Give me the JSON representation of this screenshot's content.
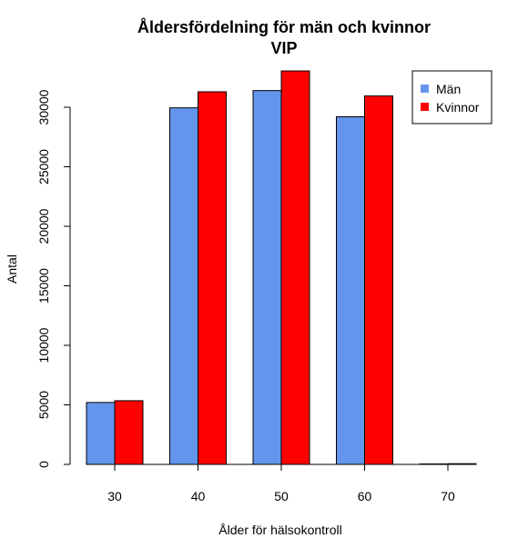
{
  "chart_data": {
    "type": "bar",
    "title": "Åldersfördelning för män och kvinnor",
    "subtitle": "VIP",
    "xlabel": "Ålder för hälsokontroll",
    "ylabel": "Antal",
    "categories": [
      "30",
      "40",
      "50",
      "60",
      "70"
    ],
    "series": [
      {
        "name": "Män",
        "color": "#6495ED",
        "values": [
          5200,
          29950,
          31400,
          29200,
          40
        ]
      },
      {
        "name": "Kvinnor",
        "color": "#FF0000",
        "values": [
          5350,
          31300,
          33050,
          30950,
          60
        ]
      }
    ],
    "ylim": [
      0,
      33000
    ],
    "yticks": [
      "0",
      "5000",
      "10000",
      "15000",
      "20000",
      "25000",
      "30000"
    ],
    "grid": false,
    "legend_position": "top-right"
  }
}
